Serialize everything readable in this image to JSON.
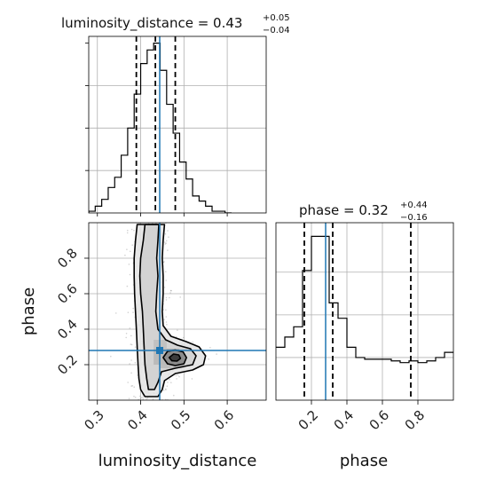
{
  "chart_data": {
    "type": "corner",
    "grid": true,
    "colors": {
      "truth": "#1f77b4",
      "hist": "#000000",
      "quantile": "#000000",
      "grid": "#b0b0b0",
      "scatter": "#7f7f7f",
      "contour_fill_outer": "#e4e4e4",
      "contour_fill_inner": "#8c8c8c",
      "contour_fill_core": "#3c3c3c",
      "contour_line": "#000000"
    },
    "parameters": [
      {
        "name": "luminosity_distance",
        "axis_label": "luminosity_distance",
        "range": [
          0.28,
          0.69
        ],
        "ticks": [
          0.3,
          0.4,
          0.5,
          0.6
        ],
        "tick_labels": [
          "0.3",
          "0.4",
          "0.5",
          "0.6"
        ],
        "title": {
          "lhs": "luminosity_distance = 0.43",
          "upper": "+0.05",
          "lower": "−0.04"
        },
        "quantiles": [
          0.39,
          0.434,
          0.48
        ],
        "truth": 0.444,
        "histogram": {
          "bin_edges": [
            0.28,
            0.295,
            0.31,
            0.325,
            0.34,
            0.355,
            0.37,
            0.385,
            0.4,
            0.415,
            0.43,
            0.445,
            0.46,
            0.475,
            0.49,
            0.505,
            0.52,
            0.535,
            0.55,
            0.565,
            0.58,
            0.595,
            0.61
          ],
          "counts": [
            0.01,
            0.04,
            0.08,
            0.15,
            0.21,
            0.34,
            0.5,
            0.7,
            0.88,
            0.96,
            1.0,
            0.84,
            0.64,
            0.47,
            0.3,
            0.2,
            0.1,
            0.07,
            0.04,
            0.01,
            0.01,
            0.0
          ]
        }
      },
      {
        "name": "phase",
        "axis_label": "phase",
        "range": [
          0.0,
          1.0
        ],
        "ticks": [
          0.2,
          0.4,
          0.6,
          0.8
        ],
        "tick_labels": [
          "0.2",
          "0.4",
          "0.6",
          "0.8"
        ],
        "title": {
          "lhs": "phase = 0.32",
          "upper": "+0.44",
          "lower": "−0.16"
        },
        "quantiles": [
          0.16,
          0.32,
          0.76
        ],
        "truth": 0.28,
        "histogram": {
          "bin_edges": [
            0.0,
            0.05,
            0.1,
            0.15,
            0.2,
            0.25,
            0.3,
            0.35,
            0.4,
            0.45,
            0.5,
            0.55,
            0.6,
            0.65,
            0.7,
            0.75,
            0.8,
            0.85,
            0.9,
            0.95,
            1.0
          ],
          "counts": [
            0.31,
            0.37,
            0.43,
            0.76,
            0.96,
            0.96,
            0.57,
            0.48,
            0.31,
            0.25,
            0.24,
            0.24,
            0.24,
            0.23,
            0.22,
            0.23,
            0.22,
            0.23,
            0.25,
            0.28
          ]
        }
      }
    ],
    "joint": {
      "x": "luminosity_distance",
      "y": "phase",
      "truth_point": [
        0.444,
        0.28
      ],
      "peak": [
        0.478,
        0.24
      ],
      "contours": [
        {
          "level": "outer",
          "points": [
            [
              0.392,
              0.99
            ],
            [
              0.388,
              0.9
            ],
            [
              0.385,
              0.8
            ],
            [
              0.385,
              0.7
            ],
            [
              0.386,
              0.6
            ],
            [
              0.388,
              0.5
            ],
            [
              0.39,
              0.4
            ],
            [
              0.392,
              0.3
            ],
            [
              0.394,
              0.2
            ],
            [
              0.396,
              0.12
            ],
            [
              0.4,
              0.06
            ],
            [
              0.41,
              0.02
            ],
            [
              0.44,
              0.02
            ],
            [
              0.45,
              0.06
            ],
            [
              0.455,
              0.11
            ],
            [
              0.48,
              0.15
            ],
            [
              0.52,
              0.17
            ],
            [
              0.545,
              0.2
            ],
            [
              0.55,
              0.25
            ],
            [
              0.535,
              0.3
            ],
            [
              0.505,
              0.33
            ],
            [
              0.47,
              0.36
            ],
            [
              0.452,
              0.42
            ],
            [
              0.45,
              0.5
            ],
            [
              0.452,
              0.6
            ],
            [
              0.452,
              0.7
            ],
            [
              0.45,
              0.8
            ],
            [
              0.452,
              0.9
            ],
            [
              0.455,
              0.99
            ]
          ]
        },
        {
          "level": "middle",
          "points": [
            [
              0.41,
              0.99
            ],
            [
              0.406,
              0.9
            ],
            [
              0.4,
              0.8
            ],
            [
              0.398,
              0.7
            ],
            [
              0.4,
              0.6
            ],
            [
              0.404,
              0.5
            ],
            [
              0.406,
              0.4
            ],
            [
              0.408,
              0.3
            ],
            [
              0.41,
              0.2
            ],
            [
              0.414,
              0.12
            ],
            [
              0.418,
              0.06
            ],
            [
              0.432,
              0.06
            ],
            [
              0.44,
              0.1
            ],
            [
              0.448,
              0.16
            ],
            [
              0.48,
              0.18
            ],
            [
              0.52,
              0.2
            ],
            [
              0.528,
              0.25
            ],
            [
              0.515,
              0.29
            ],
            [
              0.485,
              0.31
            ],
            [
              0.458,
              0.34
            ],
            [
              0.44,
              0.4
            ],
            [
              0.435,
              0.5
            ],
            [
              0.437,
              0.6
            ],
            [
              0.44,
              0.7
            ],
            [
              0.437,
              0.8
            ],
            [
              0.44,
              0.9
            ],
            [
              0.442,
              0.99
            ]
          ]
        },
        {
          "level": "inner",
          "points": [
            [
              0.452,
              0.24
            ],
            [
              0.462,
              0.205
            ],
            [
              0.48,
              0.195
            ],
            [
              0.5,
              0.205
            ],
            [
              0.506,
              0.24
            ],
            [
              0.498,
              0.272
            ],
            [
              0.48,
              0.282
            ],
            [
              0.462,
              0.275
            ]
          ]
        },
        {
          "level": "core",
          "points": [
            [
              0.466,
              0.24
            ],
            [
              0.472,
              0.222
            ],
            [
              0.484,
              0.22
            ],
            [
              0.492,
              0.235
            ],
            [
              0.488,
              0.255
            ],
            [
              0.476,
              0.26
            ]
          ]
        }
      ],
      "density_cells": [
        [
          0.43,
          0.46,
          0.2,
          0.29,
          0.35
        ],
        [
          0.46,
          0.49,
          0.2,
          0.29,
          0.6
        ],
        [
          0.43,
          0.46,
          0.29,
          0.34,
          0.25
        ],
        [
          0.445,
          0.5,
          0.18,
          0.2,
          0.3
        ]
      ]
    }
  }
}
